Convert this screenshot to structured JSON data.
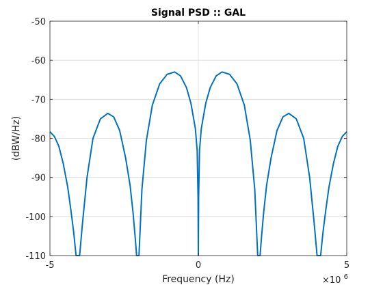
{
  "chart_data": {
    "type": "line",
    "title": "Signal PSD :: GAL",
    "xlabel": "Frequency (Hz)",
    "ylabel": "(dBW/Hz)",
    "xlim": [
      -5,
      5
    ],
    "ylim": [
      -110,
      -50
    ],
    "x_exponent_label": "×10",
    "x_exponent_power": "6",
    "x_ticks": [
      -5,
      0,
      5
    ],
    "x_tick_labels": [
      "-5",
      "0",
      "5"
    ],
    "y_ticks": [
      -110,
      -100,
      -90,
      -80,
      -70,
      -60,
      -50
    ],
    "y_tick_labels": [
      "-110",
      "-100",
      "-90",
      "-80",
      "-70",
      "-60",
      "-50"
    ],
    "grid": true,
    "series": [
      {
        "color": "#0072bd",
        "x": [
          -5.0,
          -4.85,
          -4.7,
          -4.55,
          -4.4,
          -4.3,
          -4.2,
          -4.12,
          -4.08,
          -4.0,
          -3.9,
          -3.75,
          -3.55,
          -3.3,
          -3.05,
          -2.85,
          -2.65,
          -2.45,
          -2.3,
          -2.2,
          -2.12,
          -2.08,
          -2.0,
          -1.9,
          -1.75,
          -1.55,
          -1.3,
          -1.05,
          -0.8,
          -0.6,
          -0.4,
          -0.25,
          -0.1,
          -0.04,
          -0.01,
          0.0
        ],
        "y": [
          -78.3,
          -79.5,
          -82.0,
          -86.5,
          -92.5,
          -98.0,
          -104.0,
          -110.0,
          -110.0,
          -110.0,
          -101.5,
          -90.0,
          -80.0,
          -75.0,
          -73.6,
          -74.5,
          -78.0,
          -85.0,
          -92.0,
          -99.0,
          -106.0,
          -110.0,
          -110.0,
          -93.0,
          -80.5,
          -71.5,
          -66.0,
          -63.6,
          -63.0,
          -64.0,
          -67.0,
          -71.0,
          -77.5,
          -83.0,
          -95.0,
          -110.0
        ]
      }
    ],
    "mirror_symmetric": true
  }
}
